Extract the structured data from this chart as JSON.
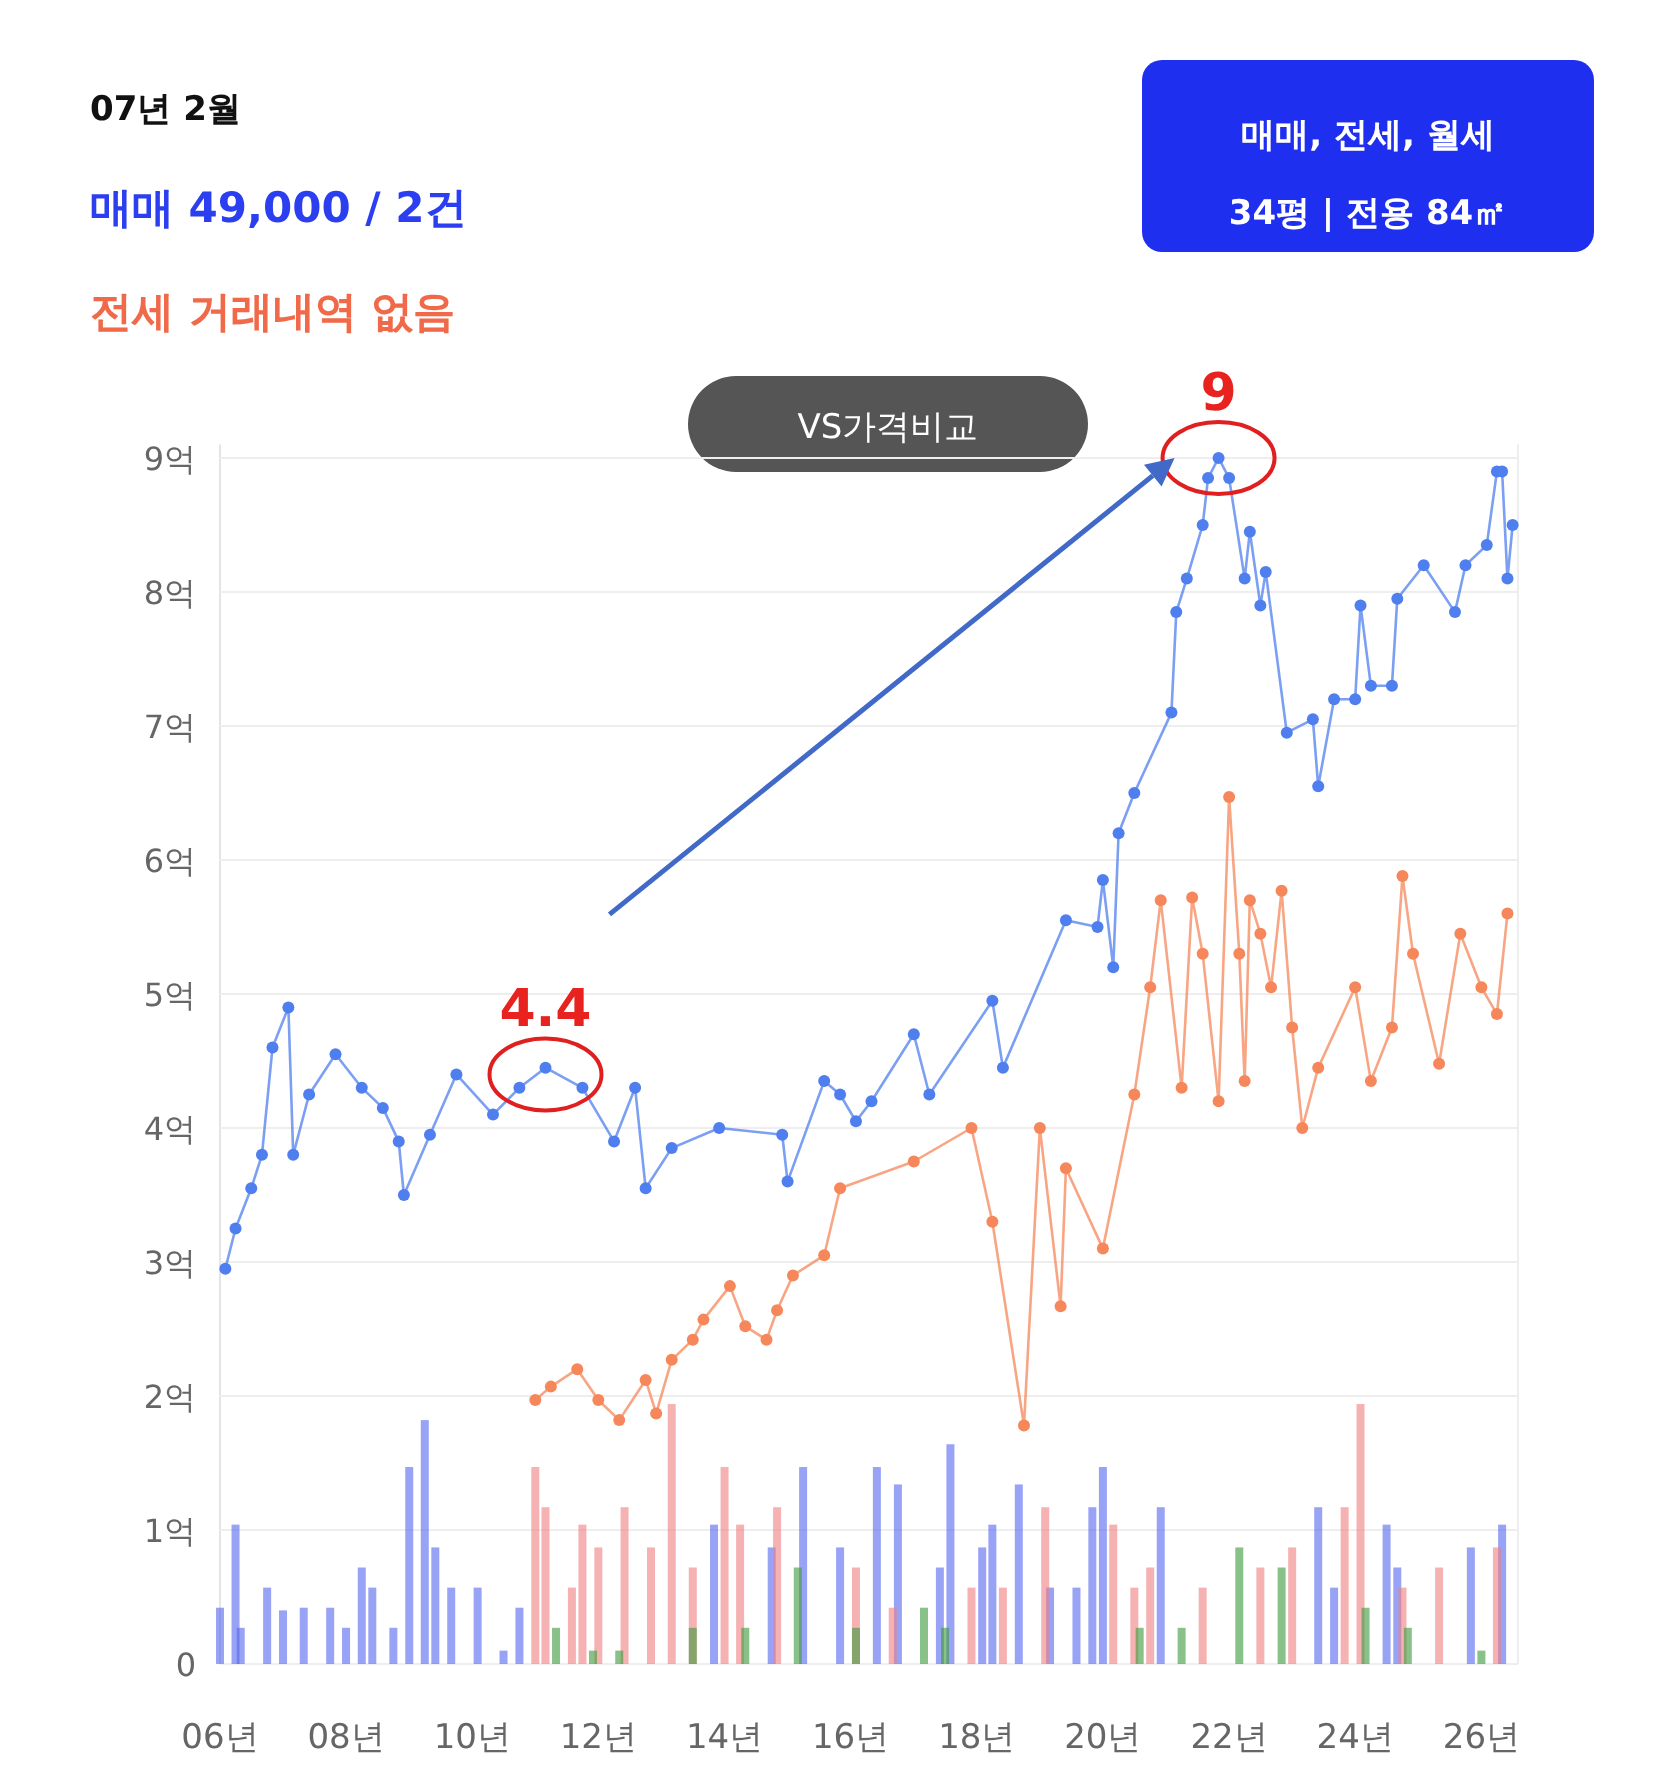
{
  "chart_data": {
    "type": "line",
    "title": "07년 2월",
    "subtitle": "매매 49,000 / 2건",
    "annotations": [
      "전세 거래내역 없음",
      "매매, 전세, 월세",
      "34평 | 전용 84㎡",
      "VS가격비교",
      {
        "text": "4.4",
        "x": "2011-03",
        "y": 4.4
      },
      {
        "text": "9",
        "x": "2021-11",
        "y": 9
      }
    ],
    "xlim": [
      "2006-01",
      "2026-08"
    ],
    "ylim": [
      0,
      9.1
    ],
    "xticks": [
      {
        "value": "2006",
        "label": "06년"
      },
      {
        "value": "2008",
        "label": "08년"
      },
      {
        "value": "2010",
        "label": "10년"
      },
      {
        "value": "2012",
        "label": "12년"
      },
      {
        "value": "2014",
        "label": "14년"
      },
      {
        "value": "2016",
        "label": "16년"
      },
      {
        "value": "2018",
        "label": "18년"
      },
      {
        "value": "2020",
        "label": "20년"
      },
      {
        "value": "2022",
        "label": "22년"
      },
      {
        "value": "2024",
        "label": "24년"
      },
      {
        "value": "2026",
        "label": "26년"
      }
    ],
    "yticks": [
      0,
      {
        "value": 1,
        "label": "1억"
      },
      {
        "value": 2,
        "label": "2억"
      },
      {
        "value": 3,
        "label": "3억"
      },
      {
        "value": 4,
        "label": "4억"
      },
      {
        "value": 5,
        "label": "5억"
      },
      {
        "value": 6,
        "label": "6억"
      },
      {
        "value": 7,
        "label": "7억"
      },
      {
        "value": 8,
        "label": "8억"
      },
      {
        "value": 9,
        "label": "9억"
      }
    ],
    "grid": "y",
    "marker": "circle",
    "line_style": "solid",
    "series": [
      {
        "type": "bar",
        "color": "#5566ee",
        "x": [
          "2006-01",
          "2006-04",
          "2006-05",
          "2006-10",
          "2007-01",
          "2007-05",
          "2007-10",
          "2008-01",
          "2008-04",
          "2008-06",
          "2008-10",
          "2009-01",
          "2009-04",
          "2009-06",
          "2009-09",
          "2010-02",
          "2010-07",
          "2010-10",
          "2013-11",
          "2014-10",
          "2015-04",
          "2015-11",
          "2016-06",
          "2016-10",
          "2017-06",
          "2017-08",
          "2018-02",
          "2018-04",
          "2018-09",
          "2019-03",
          "2019-08",
          "2019-11",
          "2020-01",
          "2020-12",
          "2023-06",
          "2023-09",
          "2024-07",
          "2024-09",
          "2025-11",
          "2026-05"
        ],
        "values": [
          0.42,
          1.04,
          0.27,
          0.57,
          0.4,
          0.42,
          0.42,
          0.27,
          0.72,
          0.57,
          0.27,
          1.47,
          1.82,
          0.87,
          0.57,
          0.57,
          0.1,
          0.42,
          1.04,
          0.87,
          1.47,
          0.87,
          1.47,
          1.34,
          0.72,
          1.64,
          0.87,
          1.04,
          1.34,
          0.57,
          0.57,
          1.17,
          1.47,
          1.17,
          1.17,
          0.57,
          1.04,
          0.72,
          0.87,
          1.04
        ]
      },
      {
        "type": "bar",
        "color": "#f07f7f",
        "x": [
          "2011-01",
          "2011-03",
          "2011-08",
          "2011-10",
          "2012-01",
          "2012-06",
          "2012-11",
          "2013-03",
          "2013-07",
          "2014-01",
          "2014-04",
          "2014-11",
          "2016-02",
          "2016-09",
          "2017-12",
          "2018-06",
          "2019-02",
          "2020-03",
          "2020-07",
          "2020-10",
          "2021-08",
          "2022-07",
          "2023-01",
          "2023-11",
          "2024-02",
          "2024-10",
          "2025-05",
          "2026-04"
        ],
        "values": [
          1.47,
          1.17,
          0.57,
          1.04,
          0.87,
          1.17,
          0.87,
          1.94,
          0.72,
          1.47,
          1.04,
          1.17,
          0.72,
          0.42,
          0.57,
          0.57,
          1.17,
          1.04,
          0.57,
          0.72,
          0.57,
          0.72,
          0.87,
          1.17,
          1.94,
          0.57,
          0.72,
          0.87
        ]
      },
      {
        "type": "bar",
        "color": "#3a9a3a",
        "x": [
          "2011-05",
          "2011-12",
          "2012-05",
          "2013-07",
          "2014-05",
          "2015-03",
          "2016-02",
          "2017-03",
          "2017-07",
          "2020-08",
          "2021-04",
          "2022-03",
          "2022-11",
          "2024-03",
          "2024-11",
          "2026-01"
        ],
        "values": [
          0.27,
          0.1,
          0.1,
          0.27,
          0.27,
          0.72,
          0.27,
          0.42,
          0.27,
          0.27,
          0.27,
          0.87,
          0.72,
          0.42,
          0.27,
          0.1
        ]
      },
      {
        "color": "#f5875a",
        "x": [
          "2011-01",
          "2011-04",
          "2011-09",
          "2012-01",
          "2012-05",
          "2012-10",
          "2012-12",
          "2013-03",
          "2013-07",
          "2013-09",
          "2014-02",
          "2014-05",
          "2014-09",
          "2014-11",
          "2015-02",
          "2015-08",
          "2015-11",
          "2017-01",
          "2017-12",
          "2018-04",
          "2018-10",
          "2019-01",
          "2019-05",
          "2019-06",
          "2020-01",
          "2020-07",
          "2020-10",
          "2020-12",
          "2021-04",
          "2021-06",
          "2021-08",
          "2021-11",
          "2022-01",
          "2022-03",
          "2022-04",
          "2022-05",
          "2022-07",
          "2022-09",
          "2022-11",
          "2023-01",
          "2023-03",
          "2023-06",
          "2024-01",
          "2024-04",
          "2024-08",
          "2024-10",
          "2024-12",
          "2025-05",
          "2025-09",
          "2026-01",
          "2026-04",
          "2026-06"
        ],
        "values": [
          1.97,
          2.07,
          2.2,
          1.97,
          1.82,
          2.12,
          1.87,
          2.27,
          2.42,
          2.57,
          2.82,
          2.52,
          2.42,
          2.64,
          2.9,
          3.05,
          3.55,
          3.75,
          4.0,
          3.3,
          1.78,
          4.0,
          2.67,
          3.7,
          3.1,
          4.25,
          5.05,
          5.7,
          4.3,
          5.72,
          5.3,
          4.2,
          6.47,
          5.3,
          4.35,
          5.7,
          5.45,
          5.05,
          5.77,
          4.75,
          4.0,
          4.45,
          5.05,
          4.35,
          4.75,
          5.88,
          5.3,
          4.48,
          5.45,
          5.05,
          4.85,
          5.6
        ]
      },
      {
        "color": "#4f7fee",
        "x": [
          "2006-02",
          "2006-04",
          "2006-07",
          "2006-09",
          "2006-11",
          "2007-02",
          "2007-03",
          "2007-06",
          "2007-11",
          "2008-04",
          "2008-08",
          "2008-11",
          "2008-12",
          "2009-05",
          "2009-10",
          "2010-05",
          "2010-10",
          "2011-03",
          "2011-10",
          "2012-04",
          "2012-08",
          "2012-10",
          "2013-03",
          "2013-12",
          "2014-12",
          "2015-01",
          "2015-08",
          "2015-11",
          "2016-02",
          "2016-05",
          "2017-01",
          "2017-04",
          "2018-04",
          "2018-06",
          "2019-06",
          "2019-12",
          "2020-01",
          "2020-03",
          "2020-04",
          "2020-07",
          "2021-02",
          "2021-03",
          "2021-05",
          "2021-08",
          "2021-09",
          "2021-11",
          "2022-01",
          "2022-04",
          "2022-05",
          "2022-07",
          "2022-08",
          "2022-12",
          "2023-05",
          "2023-06",
          "2023-09",
          "2024-01",
          "2024-02",
          "2024-04",
          "2024-08",
          "2024-09",
          "2025-02",
          "2025-08",
          "2025-10",
          "2026-02",
          "2026-04",
          "2026-05",
          "2026-06",
          "2026-07"
        ],
        "values": [
          2.95,
          3.25,
          3.55,
          3.8,
          4.6,
          4.9,
          3.8,
          4.25,
          4.55,
          4.3,
          4.15,
          3.9,
          3.5,
          3.95,
          4.4,
          4.1,
          4.3,
          4.45,
          4.3,
          3.9,
          4.3,
          3.55,
          3.85,
          4.0,
          3.95,
          3.6,
          4.35,
          4.25,
          4.05,
          4.2,
          4.7,
          4.25,
          4.95,
          4.45,
          5.55,
          5.5,
          5.85,
          5.2,
          6.2,
          6.5,
          7.1,
          7.85,
          8.1,
          8.5,
          8.85,
          9.0,
          8.85,
          8.1,
          8.45,
          7.9,
          8.15,
          6.95,
          7.05,
          6.55,
          7.2,
          7.2,
          7.9,
          7.3,
          7.3,
          7.95,
          8.2,
          7.85,
          8.2,
          8.35,
          8.9,
          8.9,
          8.1,
          8.5
        ]
      }
    ]
  }
}
